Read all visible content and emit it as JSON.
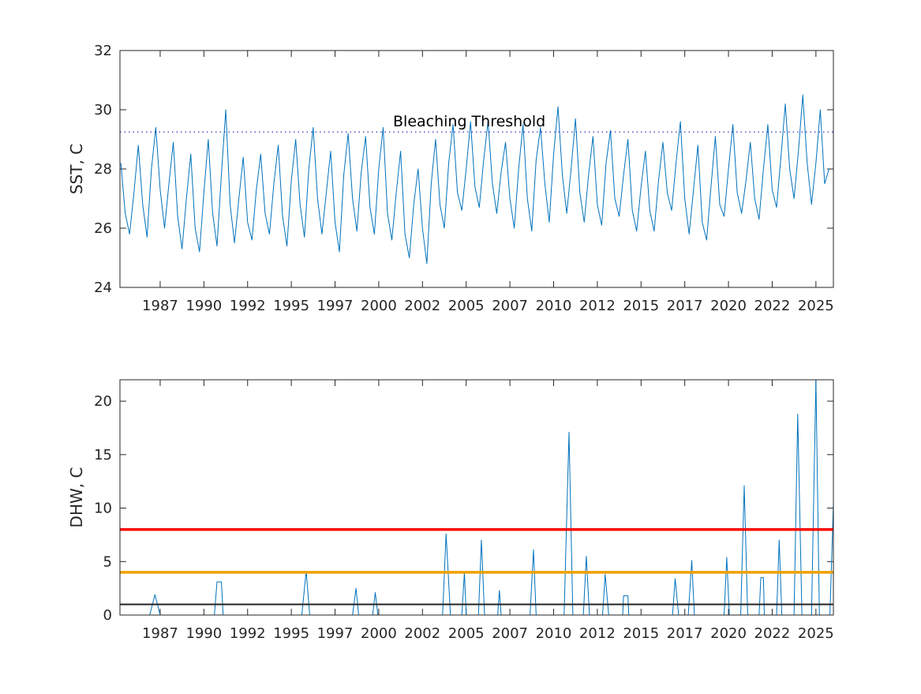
{
  "chart_data": [
    {
      "type": "line",
      "ylabel": "SST, C",
      "xlim": [
        1985.2,
        2026.0
      ],
      "ylim": [
        24,
        32
      ],
      "yticks": [
        24,
        26,
        28,
        30,
        32
      ],
      "xticks": [
        {
          "value": 1987.5,
          "label": "1987"
        },
        {
          "value": 1990.0,
          "label": "1990"
        },
        {
          "value": 1992.5,
          "label": "1992"
        },
        {
          "value": 1995.0,
          "label": "1995"
        },
        {
          "value": 1997.5,
          "label": "1997"
        },
        {
          "value": 2000.0,
          "label": "2000"
        },
        {
          "value": 2002.5,
          "label": "2002"
        },
        {
          "value": 2005.0,
          "label": "2005"
        },
        {
          "value": 2007.5,
          "label": "2007"
        },
        {
          "value": 2010.0,
          "label": "2010"
        },
        {
          "value": 2012.5,
          "label": "2012"
        },
        {
          "value": 2015.0,
          "label": "2015"
        },
        {
          "value": 2017.5,
          "label": "2017"
        },
        {
          "value": 2020.0,
          "label": "2020"
        },
        {
          "value": 2022.5,
          "label": "2022"
        },
        {
          "value": 2025.0,
          "label": "2025"
        }
      ],
      "reference_lines": [
        {
          "label": "Bleaching Threshold",
          "value": 29.25,
          "color": "#0000aa",
          "linewidth": 1,
          "dashed": true
        }
      ],
      "x": [
        1985.25,
        1985.5,
        1985.75,
        1986,
        1986.25,
        1986.5,
        1986.75,
        1987,
        1987.25,
        1987.5,
        1987.75,
        1988,
        1988.25,
        1988.5,
        1988.75,
        1989,
        1989.25,
        1989.5,
        1989.75,
        1990,
        1990.25,
        1990.5,
        1990.75,
        1991,
        1991.25,
        1991.5,
        1991.75,
        1992,
        1992.25,
        1992.5,
        1992.75,
        1993,
        1993.25,
        1993.5,
        1993.75,
        1994,
        1994.25,
        1994.5,
        1994.75,
        1995,
        1995.25,
        1995.5,
        1995.75,
        1996,
        1996.25,
        1996.5,
        1996.75,
        1997,
        1997.25,
        1997.5,
        1997.75,
        1998,
        1998.25,
        1998.5,
        1998.75,
        1999,
        1999.25,
        1999.5,
        1999.75,
        2000,
        2000.25,
        2000.5,
        2000.75,
        2001,
        2001.25,
        2001.5,
        2001.75,
        2002,
        2002.25,
        2002.5,
        2002.75,
        2003,
        2003.25,
        2003.5,
        2003.75,
        2004,
        2004.25,
        2004.5,
        2004.75,
        2005,
        2005.25,
        2005.5,
        2005.75,
        2006,
        2006.25,
        2006.5,
        2006.75,
        2007,
        2007.25,
        2007.5,
        2007.75,
        2008,
        2008.25,
        2008.5,
        2008.75,
        2009,
        2009.25,
        2009.5,
        2009.75,
        2010,
        2010.25,
        2010.5,
        2010.75,
        2011,
        2011.25,
        2011.5,
        2011.75,
        2012,
        2012.25,
        2012.5,
        2012.75,
        2013,
        2013.25,
        2013.5,
        2013.75,
        2014,
        2014.25,
        2014.5,
        2014.75,
        2015,
        2015.25,
        2015.5,
        2015.75,
        2016,
        2016.25,
        2016.5,
        2016.75,
        2017,
        2017.25,
        2017.5,
        2017.75,
        2018,
        2018.25,
        2018.5,
        2018.75,
        2019,
        2019.25,
        2019.5,
        2019.75,
        2020,
        2020.25,
        2020.5,
        2020.75,
        2021,
        2021.25,
        2021.5,
        2021.75,
        2022,
        2022.25,
        2022.5,
        2022.75,
        2023,
        2023.25,
        2023.5,
        2023.75,
        2024,
        2024.25,
        2024.5,
        2024.75,
        2025,
        2025.25,
        2025.5,
        2025.75
      ],
      "series": [
        {
          "color": "#0072bd",
          "linewidth": 1,
          "values": [
            28.2,
            26.5,
            25.8,
            27.2,
            28.8,
            26.8,
            25.7,
            28.0,
            29.4,
            27.3,
            26.0,
            27.5,
            28.9,
            26.4,
            25.3,
            27.0,
            28.5,
            26.0,
            25.2,
            27.2,
            29.0,
            26.5,
            25.4,
            27.8,
            30.0,
            26.8,
            25.5,
            27.0,
            28.4,
            26.2,
            25.6,
            27.3,
            28.5,
            26.5,
            25.8,
            27.5,
            28.8,
            26.4,
            25.4,
            27.6,
            29.0,
            26.8,
            25.7,
            28.0,
            29.4,
            27.0,
            25.8,
            27.2,
            28.6,
            26.2,
            25.2,
            27.8,
            29.2,
            27.0,
            25.9,
            27.9,
            29.1,
            26.7,
            25.8,
            28.0,
            29.4,
            26.5,
            25.6,
            27.2,
            28.6,
            25.8,
            25.0,
            26.8,
            28.0,
            26.0,
            24.8,
            27.5,
            29.0,
            26.8,
            26.0,
            28.2,
            29.5,
            27.2,
            26.6,
            28.0,
            29.6,
            27.4,
            26.7,
            28.3,
            29.6,
            27.5,
            26.5,
            27.9,
            28.9,
            27.0,
            26.0,
            28.0,
            29.5,
            27.0,
            25.9,
            28.3,
            29.4,
            27.5,
            26.2,
            28.5,
            30.1,
            27.8,
            26.5,
            28.0,
            29.7,
            27.2,
            26.2,
            27.8,
            29.1,
            26.8,
            26.1,
            28.2,
            29.3,
            27.0,
            26.4,
            27.8,
            29.0,
            26.6,
            25.9,
            27.4,
            28.6,
            26.6,
            25.9,
            27.6,
            28.9,
            27.2,
            26.6,
            28.2,
            29.6,
            27.0,
            25.8,
            27.3,
            28.8,
            26.2,
            25.6,
            27.4,
            29.1,
            26.8,
            26.4,
            28.0,
            29.5,
            27.2,
            26.5,
            27.6,
            28.9,
            27.0,
            26.3,
            28.0,
            29.5,
            27.3,
            26.7,
            28.4,
            30.2,
            28.0,
            27.0,
            28.6,
            30.5,
            28.2,
            26.8,
            28.2,
            30.0,
            27.5,
            28.0
          ]
        }
      ]
    },
    {
      "type": "line",
      "ylabel": "DHW, C",
      "xlim": [
        1985.2,
        2026.0
      ],
      "ylim": [
        0,
        22
      ],
      "yticks": [
        0,
        5,
        10,
        15,
        20
      ],
      "xticks": [
        {
          "value": 1987.5,
          "label": "1987"
        },
        {
          "value": 1990.0,
          "label": "1990"
        },
        {
          "value": 1992.5,
          "label": "1992"
        },
        {
          "value": 1995.0,
          "label": "1995"
        },
        {
          "value": 1997.5,
          "label": "1997"
        },
        {
          "value": 2000.0,
          "label": "2000"
        },
        {
          "value": 2002.5,
          "label": "2002"
        },
        {
          "value": 2005.0,
          "label": "2005"
        },
        {
          "value": 2007.5,
          "label": "2007"
        },
        {
          "value": 2010.0,
          "label": "2010"
        },
        {
          "value": 2012.5,
          "label": "2012"
        },
        {
          "value": 2015.0,
          "label": "2015"
        },
        {
          "value": 2017.5,
          "label": "2017"
        },
        {
          "value": 2020.0,
          "label": "2020"
        },
        {
          "value": 2022.5,
          "label": "2022"
        },
        {
          "value": 2025.0,
          "label": "2025"
        }
      ],
      "reference_lines": [
        {
          "value": 8,
          "color": "#ff0000",
          "linewidth": 3.5
        },
        {
          "value": 4,
          "color": "#f0a000",
          "linewidth": 3.5
        },
        {
          "value": 1,
          "color": "#222222",
          "linewidth": 2
        }
      ],
      "x": [
        1985.2,
        1986.9,
        1987.2,
        1987.5,
        1990.6,
        1990.75,
        1991.0,
        1991.1,
        1995.6,
        1995.85,
        1996.05,
        1998.5,
        1998.7,
        1998.85,
        1999.65,
        1999.8,
        1999.95,
        2003.65,
        2003.85,
        2004.1,
        2004.75,
        2004.9,
        2005.0,
        2005.7,
        2005.87,
        2006.05,
        2006.8,
        2006.9,
        2007.0,
        2008.65,
        2008.85,
        2009.0,
        2010.6,
        2010.88,
        2011.1,
        2011.7,
        2011.87,
        2012.05,
        2012.8,
        2012.95,
        2013.15,
        2013.95,
        2014.0,
        2014.25,
        2014.3,
        2016.8,
        2016.95,
        2017.15,
        2017.7,
        2017.9,
        2018.05,
        2019.75,
        2019.9,
        2020.05,
        2020.7,
        2020.9,
        2021.1,
        2021.75,
        2021.85,
        2022.0,
        2022.05,
        2022.75,
        2022.9,
        2023.05,
        2023.75,
        2023.96,
        2024.2,
        2024.75,
        2025.0,
        2025.2,
        2025.8,
        2026.0
      ],
      "series": [
        {
          "color": "#0072bd",
          "linewidth": 1,
          "values": [
            0,
            0,
            1.9,
            0,
            0,
            3.1,
            3.1,
            0,
            0,
            4.1,
            0,
            0,
            2.5,
            0,
            0,
            2.1,
            0,
            0,
            7.6,
            0,
            0,
            4.0,
            0,
            0,
            7.0,
            0,
            0,
            2.3,
            0,
            0,
            6.1,
            0,
            0,
            17.1,
            0,
            0,
            5.5,
            0,
            0,
            3.8,
            0,
            0,
            1.8,
            1.8,
            0,
            0,
            3.4,
            0,
            0,
            5.1,
            0,
            0,
            5.4,
            0,
            0,
            12.1,
            0,
            0,
            3.5,
            3.5,
            0,
            0,
            7.0,
            0,
            0,
            18.8,
            0,
            0,
            22.0,
            0,
            0,
            10.4
          ]
        }
      ]
    }
  ]
}
